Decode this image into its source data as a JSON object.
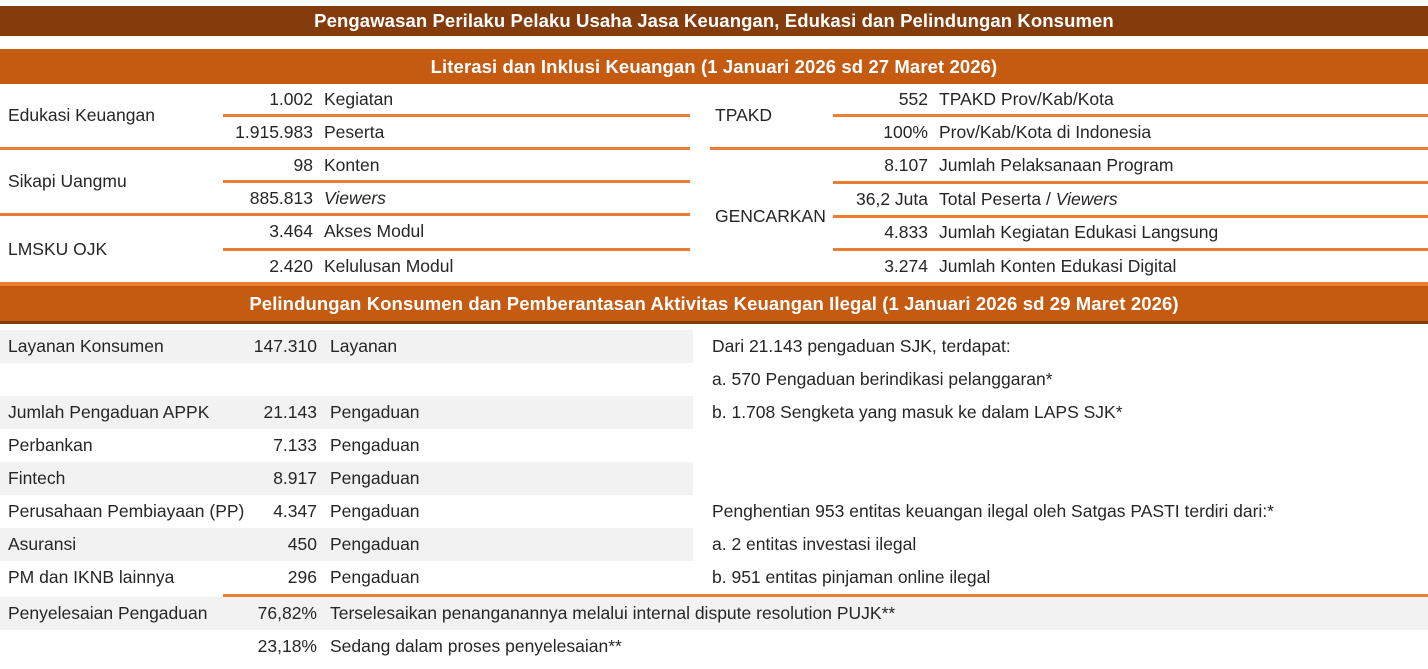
{
  "colors": {
    "dark_brown": "#843C0C",
    "orange": "#C55A11",
    "line_orange": "#ED7D31",
    "row_gray": "#F2F2F2"
  },
  "header": {
    "title": "Pengawasan Perilaku Pelaku Usaha Jasa Keuangan, Edukasi dan Pelindungan Konsumen"
  },
  "literacy": {
    "title": "Literasi dan Inklusi Keuangan (1 Januari 2026 sd 27 Maret 2026)",
    "left_groups": [
      {
        "label": "Edukasi Keuangan",
        "rows": [
          {
            "value": "1.002",
            "unit": "Kegiatan"
          },
          {
            "value": "1.915.983",
            "unit": "Peserta"
          }
        ]
      },
      {
        "label": "Sikapi Uangmu",
        "rows": [
          {
            "value": "98",
            "unit": "Konten"
          },
          {
            "value": "885.813",
            "unit": "",
            "unit_it": "Viewers"
          }
        ]
      },
      {
        "label": "LMSKU OJK",
        "rows": [
          {
            "value": "3.464",
            "unit": "Akses Modul"
          },
          {
            "value": "2.420",
            "unit": "Kelulusan Modul"
          }
        ]
      }
    ],
    "right_groups": [
      {
        "label": "TPAKD",
        "rows": [
          {
            "value": "552",
            "unit": "TPAKD Prov/Kab/Kota"
          },
          {
            "value": "100%",
            "unit": "Prov/Kab/Kota di Indonesia"
          }
        ]
      },
      {
        "label": "GENCARKAN",
        "rows": [
          {
            "value": "8.107",
            "unit": "Jumlah Pelaksanaan Program"
          },
          {
            "value": "36,2 Juta",
            "unit": "Total Peserta / ",
            "unit_it": "Viewers"
          },
          {
            "value": "4.833",
            "unit": "Jumlah Kegiatan Edukasi Langsung"
          },
          {
            "value": "3.274",
            "unit": "Jumlah Konten Edukasi Digital"
          }
        ]
      }
    ]
  },
  "protection": {
    "title": "Pelindungan Konsumen dan Pemberantasan Aktivitas Keuangan Ilegal (1 Januari 2026 sd 29 Maret 2026)",
    "rows": [
      {
        "label": "Layanan Konsumen",
        "value": "147.310",
        "unit": "Layanan"
      },
      {
        "label": "",
        "value": "",
        "unit": ""
      },
      {
        "label": "Jumlah Pengaduan APPK",
        "value": "21.143",
        "unit": "Pengaduan"
      },
      {
        "label": "Perbankan",
        "value": "7.133",
        "unit": "Pengaduan"
      },
      {
        "label": "Fintech",
        "value": "8.917",
        "unit": "Pengaduan"
      },
      {
        "label": "Perusahaan Pembiayaan (PP)",
        "value": "4.347",
        "unit": "Pengaduan"
      },
      {
        "label": "Asuransi",
        "value": "450",
        "unit": "Pengaduan"
      },
      {
        "label": "PM dan IKNB lainnya",
        "value": "296",
        "unit": "Pengaduan"
      },
      {
        "label": "Penyelesaian Pengaduan",
        "value": "76,82%",
        "unit": "Terselesaikan penanganannya melalui internal dispute resolution PUJK**"
      },
      {
        "label": "",
        "value": "23,18%",
        "unit": "Sedang dalam proses penyelesaian**"
      }
    ],
    "complaints_note": {
      "title": "Dari 21.143 pengaduan SJK, terdapat:",
      "item_a": "a. 570 Pengaduan berindikasi pelanggaran*",
      "item_b": "b. 1.708 Sengketa yang masuk ke dalam LAPS SJK*"
    },
    "illegal_note": {
      "title": "Penghentian 953 entitas keuangan ilegal oleh Satgas PASTI terdiri dari:*",
      "item_a": "a. 2 entitas investasi ilegal",
      "item_b": "b. 951 entitas pinjaman online ilegal"
    }
  }
}
